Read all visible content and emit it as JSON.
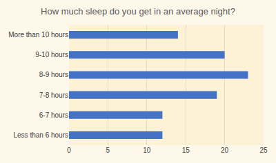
{
  "chart_data": {
    "type": "bar",
    "orientation": "horizontal",
    "title": "How much sleep do you get in an average night?",
    "categories": [
      "More than 10 hours",
      "9-10 hours",
      "8-9 hours",
      "7-8 hours",
      "6-7 hours",
      "Less than 6 hours"
    ],
    "values": [
      14,
      20,
      23,
      19,
      12,
      12
    ],
    "color": "#4472c4",
    "xlim": [
      0,
      25
    ],
    "xticks": [
      0,
      5,
      10,
      15,
      20,
      25
    ],
    "grid": true
  }
}
